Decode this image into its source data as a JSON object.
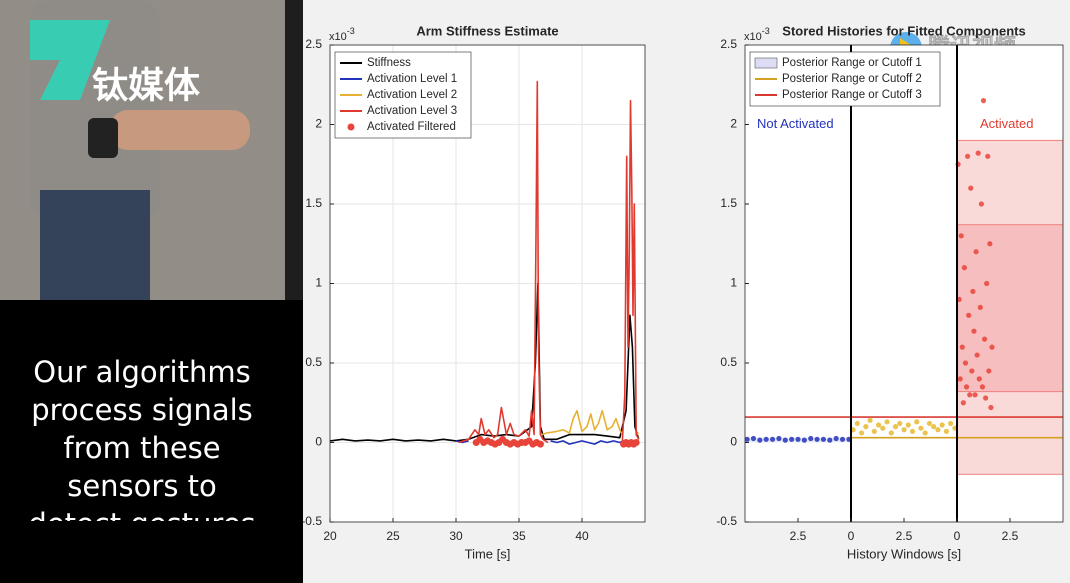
{
  "video": {
    "caption_lines": [
      "Our algorithms",
      "process signals",
      "from  these",
      "sensors to",
      "detect gestures"
    ],
    "logo_text": "钛媒体",
    "watermark": "腾讯视频"
  },
  "chart_data": [
    {
      "type": "line",
      "title": "Arm Stiffness Estimate",
      "xlabel": "Time [s]",
      "y_multiplier": {
        "base": "x10",
        "exponent": "-3"
      },
      "xlim": [
        20,
        45
      ],
      "xticks": [
        20,
        25,
        30,
        35,
        40
      ],
      "ylim": [
        -0.5,
        2.5
      ],
      "yticks": [
        -0.5,
        0,
        0.5,
        1,
        1.5,
        2,
        2.5
      ],
      "grid": true,
      "legend": "upper left",
      "series": [
        {
          "name": "Stiffness",
          "color": "#000000",
          "x": [
            20,
            21,
            22,
            23,
            24,
            25,
            26,
            27,
            28,
            29,
            30,
            31,
            32,
            33,
            34,
            35,
            36,
            36.3,
            36.5,
            36.7,
            37,
            38,
            39,
            40,
            41,
            42,
            43,
            43.5,
            43.8,
            44,
            44.2,
            44.5
          ],
          "values": [
            0.01,
            0.02,
            0.01,
            0.015,
            0.01,
            0.02,
            0.01,
            0.015,
            0.01,
            0.02,
            0.01,
            0.02,
            0.05,
            0.04,
            0.05,
            0.04,
            0.1,
            0.5,
            1.0,
            0.1,
            0.02,
            0.02,
            0.05,
            0.05,
            0.05,
            0.04,
            0.03,
            0.2,
            0.8,
            0.6,
            0.1,
            0.02
          ]
        },
        {
          "name": "Activation Level 1",
          "color": "#2233bb",
          "x": [
            30,
            30.5,
            31,
            34,
            37.5,
            38,
            38.5,
            39,
            39.5,
            40,
            40.5,
            41,
            41.5,
            42,
            42.5,
            43,
            43.3,
            44.5
          ],
          "values": [
            0.01,
            0.0,
            0.01,
            null,
            0.01,
            0.0,
            0.01,
            -0.01,
            0.0,
            0.01,
            0.0,
            -0.01,
            0.01,
            0.0,
            0.01,
            0.0,
            0.01,
            0.0
          ]
        },
        {
          "name": "Activation Level 2",
          "color": "#e8b030",
          "x": [
            36.8,
            37.2,
            38,
            38.5,
            39,
            39.3,
            39.6,
            40,
            40.4,
            40.7,
            41,
            41.3,
            41.6,
            42,
            42.4,
            42.7,
            43,
            43.2,
            43.5,
            44.3,
            44.5
          ],
          "values": [
            0.05,
            0.06,
            0.07,
            0.08,
            0.06,
            0.15,
            0.2,
            0.07,
            0.1,
            0.18,
            0.08,
            0.12,
            0.2,
            0.08,
            0.1,
            0.15,
            0.08,
            0.05,
            null,
            0.05,
            0.06
          ]
        },
        {
          "name": "Activation Level 3",
          "color": "#e03a30",
          "x": [
            30.2,
            31,
            31.5,
            31.8,
            32,
            32.3,
            32.6,
            33,
            33.3,
            33.6,
            34,
            34.3,
            34.6,
            35,
            35.5,
            35.8,
            36,
            36.2,
            36.35,
            36.45,
            36.55,
            36.7,
            36.9,
            37.3,
            37.5,
            43.2,
            43.4,
            43.55,
            43.65,
            43.75,
            43.85,
            43.95,
            44.05,
            44.15,
            44.3,
            44.5
          ],
          "values": [
            0.0,
            0.02,
            0.08,
            0.05,
            0.15,
            0.05,
            0.08,
            0.03,
            0.05,
            0.22,
            0.05,
            0.12,
            0.05,
            0.04,
            0.08,
            0.04,
            0.2,
            0.05,
            1.3,
            2.27,
            0.6,
            0.05,
            0.02,
            0.0,
            null,
            0.0,
            0.3,
            1.8,
            0.6,
            1.2,
            2.15,
            1.6,
            0.8,
            1.5,
            0.05,
            0.02
          ]
        },
        {
          "name": "Activated Filtered",
          "color": "#e8443a",
          "marker": "dot",
          "x": [
            31.6,
            31.9,
            32.2,
            32.5,
            32.8,
            33.1,
            33.4,
            33.7,
            34,
            34.3,
            34.6,
            34.9,
            35.2,
            35.5,
            35.8,
            36.1,
            36.4,
            36.7,
            43.3,
            43.5,
            43.7,
            43.9,
            44.1,
            44.3
          ],
          "values": [
            0.0,
            0.02,
            0.0,
            0.01,
            0.0,
            -0.01,
            0.0,
            0.02,
            0.0,
            -0.01,
            0.0,
            -0.01,
            0.0,
            0.0,
            0.01,
            -0.01,
            0.0,
            -0.01,
            -0.01,
            0.0,
            -0.01,
            0.0,
            -0.01,
            0.0
          ]
        }
      ]
    },
    {
      "type": "scatter",
      "title": "Stored Histories for Fitted Components",
      "xlabel": "History Windows [s]",
      "y_multiplier": {
        "base": "x10",
        "exponent": "-3"
      },
      "xlim": [
        -5,
        10
      ],
      "xticks": [
        {
          "value": -2.5,
          "label": "2.5"
        },
        0,
        2.5,
        {
          "value": 5,
          "label": "0"
        },
        {
          "value": 7.5,
          "label": "2.5"
        }
      ],
      "ylim": [
        -0.5,
        2.5
      ],
      "yticks": [
        -0.5,
        0,
        0.5,
        1,
        1.5,
        2,
        2.5
      ],
      "grid": false,
      "legend": "upper left",
      "dividers": [
        0,
        5
      ],
      "annotations": [
        {
          "text": "Not Activated",
          "color": "#2233bb"
        },
        {
          "text": "Activated",
          "color": "#e03a30"
        }
      ],
      "regions": [
        {
          "x": [
            5,
            10
          ],
          "y": [
            -0.2,
            1.9
          ],
          "color": "#f08080"
        },
        {
          "x": [
            5,
            10
          ],
          "y": [
            0.32,
            1.37
          ],
          "color": "#f08080"
        }
      ],
      "series": [
        {
          "name": "Posterior Range or Cutoff 1",
          "color": "#dcdcf5",
          "style": "band",
          "x": [
            -5,
            0
          ],
          "values": [
            0.0,
            0.03
          ]
        },
        {
          "name": "Posterior Range or Cutoff 2",
          "color": "#d4a020",
          "x": [
            0,
            10
          ],
          "values": [
            0.03,
            0.03
          ]
        },
        {
          "name": "Posterior Range or Cutoff 3",
          "color": "#d83a30",
          "x": [
            -5,
            10
          ],
          "values": [
            0.16,
            0.16
          ]
        }
      ],
      "points": [
        {
          "color": "#2233bb",
          "x": [
            -4.9,
            -4.6,
            -4.3,
            -4,
            -3.7,
            -3.4,
            -3.1,
            -2.8,
            -2.5,
            -2.2,
            -1.9,
            -1.6,
            -1.3,
            -1,
            -0.7,
            -0.4,
            -0.1
          ],
          "values": [
            0.02,
            0.025,
            0.015,
            0.02,
            0.02,
            0.025,
            0.015,
            0.02,
            0.02,
            0.015,
            0.025,
            0.02,
            0.02,
            0.015,
            0.025,
            0.02,
            0.02
          ]
        },
        {
          "color": "#e8b830",
          "x": [
            0.1,
            0.3,
            0.5,
            0.7,
            0.9,
            1.1,
            1.3,
            1.5,
            1.7,
            1.9,
            2.1,
            2.3,
            2.5,
            2.7,
            2.9,
            3.1,
            3.3,
            3.5,
            3.7,
            3.9,
            4.1,
            4.3,
            4.5,
            4.7,
            4.9
          ],
          "values": [
            0.08,
            0.12,
            0.06,
            0.1,
            0.14,
            0.07,
            0.11,
            0.09,
            0.13,
            0.06,
            0.1,
            0.12,
            0.08,
            0.11,
            0.07,
            0.13,
            0.09,
            0.06,
            0.12,
            0.1,
            0.08,
            0.11,
            0.07,
            0.12,
            0.09
          ]
        },
        {
          "color": "#e8443a",
          "x": [
            5.05,
            5.1,
            5.15,
            5.2,
            5.25,
            5.3,
            5.35,
            5.4,
            5.45,
            5.5,
            5.55,
            5.6,
            5.65,
            5.7,
            5.75,
            5.8,
            5.85,
            5.9,
            5.95,
            6.0,
            6.05,
            6.1,
            6.15,
            6.2,
            6.25,
            6.3,
            6.35,
            6.4,
            6.45,
            6.5,
            6.55,
            6.6,
            6.65
          ],
          "values": [
            1.75,
            0.9,
            0.4,
            1.3,
            0.6,
            0.25,
            1.1,
            0.5,
            0.35,
            1.8,
            0.8,
            0.3,
            1.6,
            0.45,
            0.95,
            0.7,
            0.3,
            1.2,
            0.55,
            1.82,
            0.4,
            0.85,
            1.5,
            0.35,
            2.15,
            0.65,
            0.28,
            1.0,
            1.8,
            0.45,
            1.25,
            0.22,
            0.6
          ]
        }
      ]
    }
  ]
}
